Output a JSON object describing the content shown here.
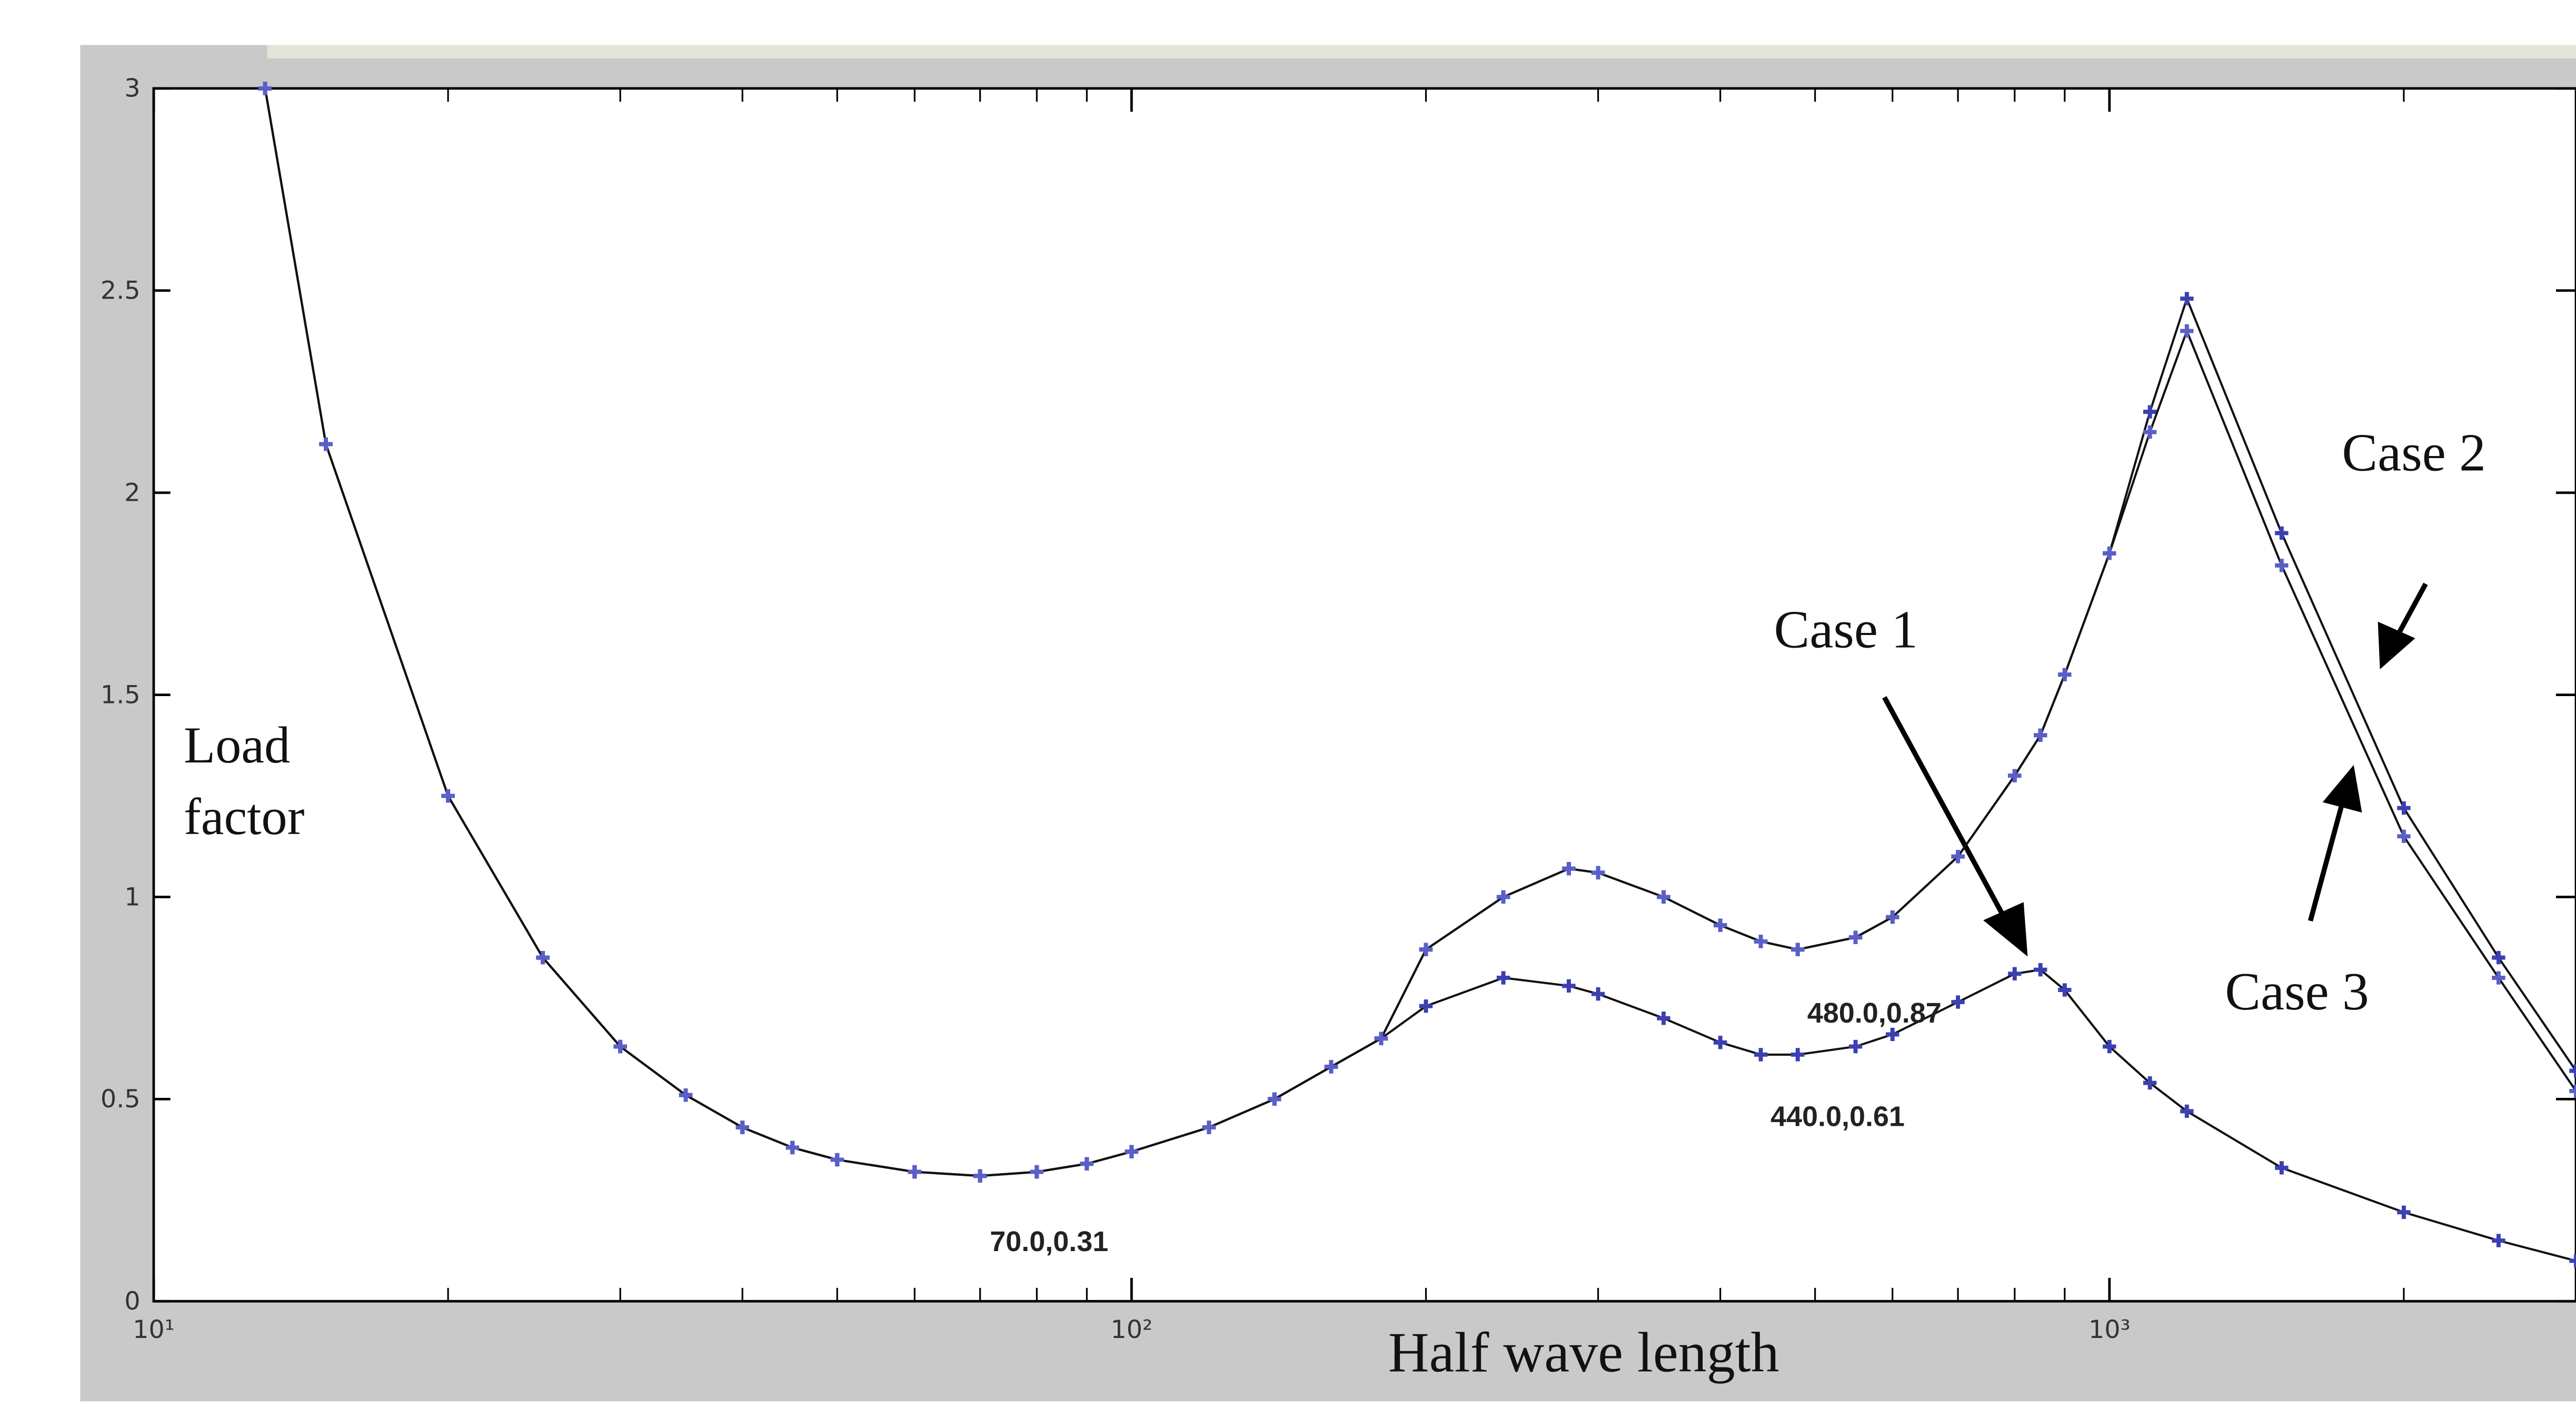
{
  "chart_data": {
    "type": "line",
    "xlabel": "Half wave length",
    "ylabel": [
      "Load",
      "factor"
    ],
    "x": [
      13,
      15,
      20,
      25,
      30,
      35,
      40,
      45,
      50,
      60,
      70,
      80,
      90,
      100,
      120,
      140,
      160,
      180,
      200,
      240,
      280,
      300,
      350,
      400,
      440,
      480,
      550,
      600,
      700,
      800,
      850,
      900,
      1000,
      1100,
      1200,
      1500,
      2000,
      2500,
      3000
    ],
    "series": [
      {
        "name": "Case 1",
        "color": "#3b40b0",
        "values": [
          3.0,
          2.12,
          1.25,
          0.85,
          0.63,
          0.51,
          0.43,
          0.38,
          0.35,
          0.32,
          0.31,
          0.32,
          0.34,
          0.37,
          0.43,
          0.5,
          0.58,
          0.65,
          0.73,
          0.8,
          0.78,
          0.76,
          0.7,
          0.64,
          0.61,
          0.61,
          0.63,
          0.66,
          0.74,
          0.81,
          0.82,
          0.77,
          0.63,
          0.54,
          0.47,
          0.33,
          0.22,
          0.15,
          0.1
        ]
      },
      {
        "name": "Case 2",
        "color": "#3b40b0",
        "values": [
          3.0,
          2.12,
          1.25,
          0.85,
          0.63,
          0.51,
          0.43,
          0.38,
          0.35,
          0.32,
          0.31,
          0.32,
          0.34,
          0.37,
          0.43,
          0.5,
          0.58,
          0.65,
          0.87,
          1.0,
          1.07,
          1.06,
          1.0,
          0.93,
          0.89,
          0.87,
          0.9,
          0.95,
          1.1,
          1.3,
          1.4,
          1.55,
          1.85,
          2.2,
          2.48,
          1.9,
          1.22,
          0.85,
          0.57
        ]
      },
      {
        "name": "Case 3",
        "color": "#5a5fc8",
        "values": [
          3.0,
          2.12,
          1.25,
          0.85,
          0.63,
          0.51,
          0.43,
          0.38,
          0.35,
          0.32,
          0.31,
          0.32,
          0.34,
          0.37,
          0.43,
          0.5,
          0.58,
          0.65,
          0.87,
          1.0,
          1.07,
          1.06,
          1.0,
          0.93,
          0.89,
          0.87,
          0.9,
          0.95,
          1.1,
          1.3,
          1.4,
          1.55,
          1.85,
          2.15,
          2.4,
          1.82,
          1.15,
          0.8,
          0.52
        ]
      }
    ],
    "line_color": "#111111",
    "xscale": "log",
    "xlim": [
      10,
      3000
    ],
    "xticks": [
      {
        "value": 10,
        "label": "10¹"
      },
      {
        "value": 100,
        "label": "10²"
      },
      {
        "value": 1000,
        "label": "10³"
      }
    ],
    "xminorticks": [
      20,
      30,
      40,
      50,
      60,
      70,
      80,
      90,
      200,
      300,
      400,
      500,
      600,
      700,
      800,
      900,
      2000,
      3000
    ],
    "ylim": [
      0,
      3
    ],
    "yticks": [
      0,
      0.5,
      1,
      1.5,
      2,
      2.5,
      3
    ],
    "annotations": [
      "Case 1",
      "Case 2",
      "Case 3",
      "70.0,0.31",
      "480.0,0.87",
      "440.0,0.61"
    ]
  }
}
